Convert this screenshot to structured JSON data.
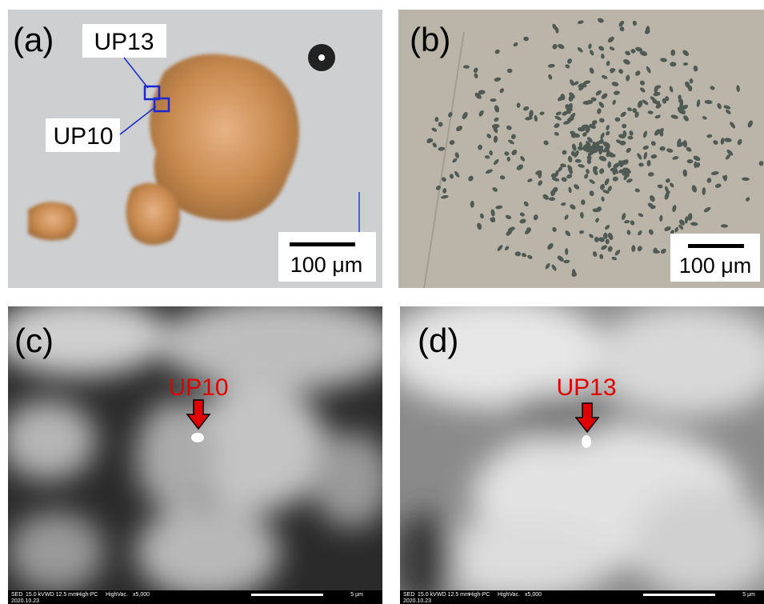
{
  "panels": [
    {
      "label": "(a)",
      "annotations": [
        "UP13",
        "UP10"
      ],
      "scale_bar": "100 μm"
    },
    {
      "label": "(b)",
      "scale_bar": "100 μm"
    },
    {
      "label": "(c)",
      "annotations": [
        "UP10"
      ],
      "footer": [
        "SED",
        "15.0 kV",
        "WD 12.5 mm",
        "High-PC",
        "HighVac.",
        "x5,000",
        "5 μm",
        "2020.10.23"
      ]
    },
    {
      "label": "(d)",
      "annotations": [
        "UP13"
      ],
      "footer": [
        "SED",
        "15.0 kV",
        "WD 12.5 mm",
        "High-PC",
        "HighVac.",
        "x5,000",
        "5 μm",
        "2020.10.23"
      ]
    }
  ]
}
